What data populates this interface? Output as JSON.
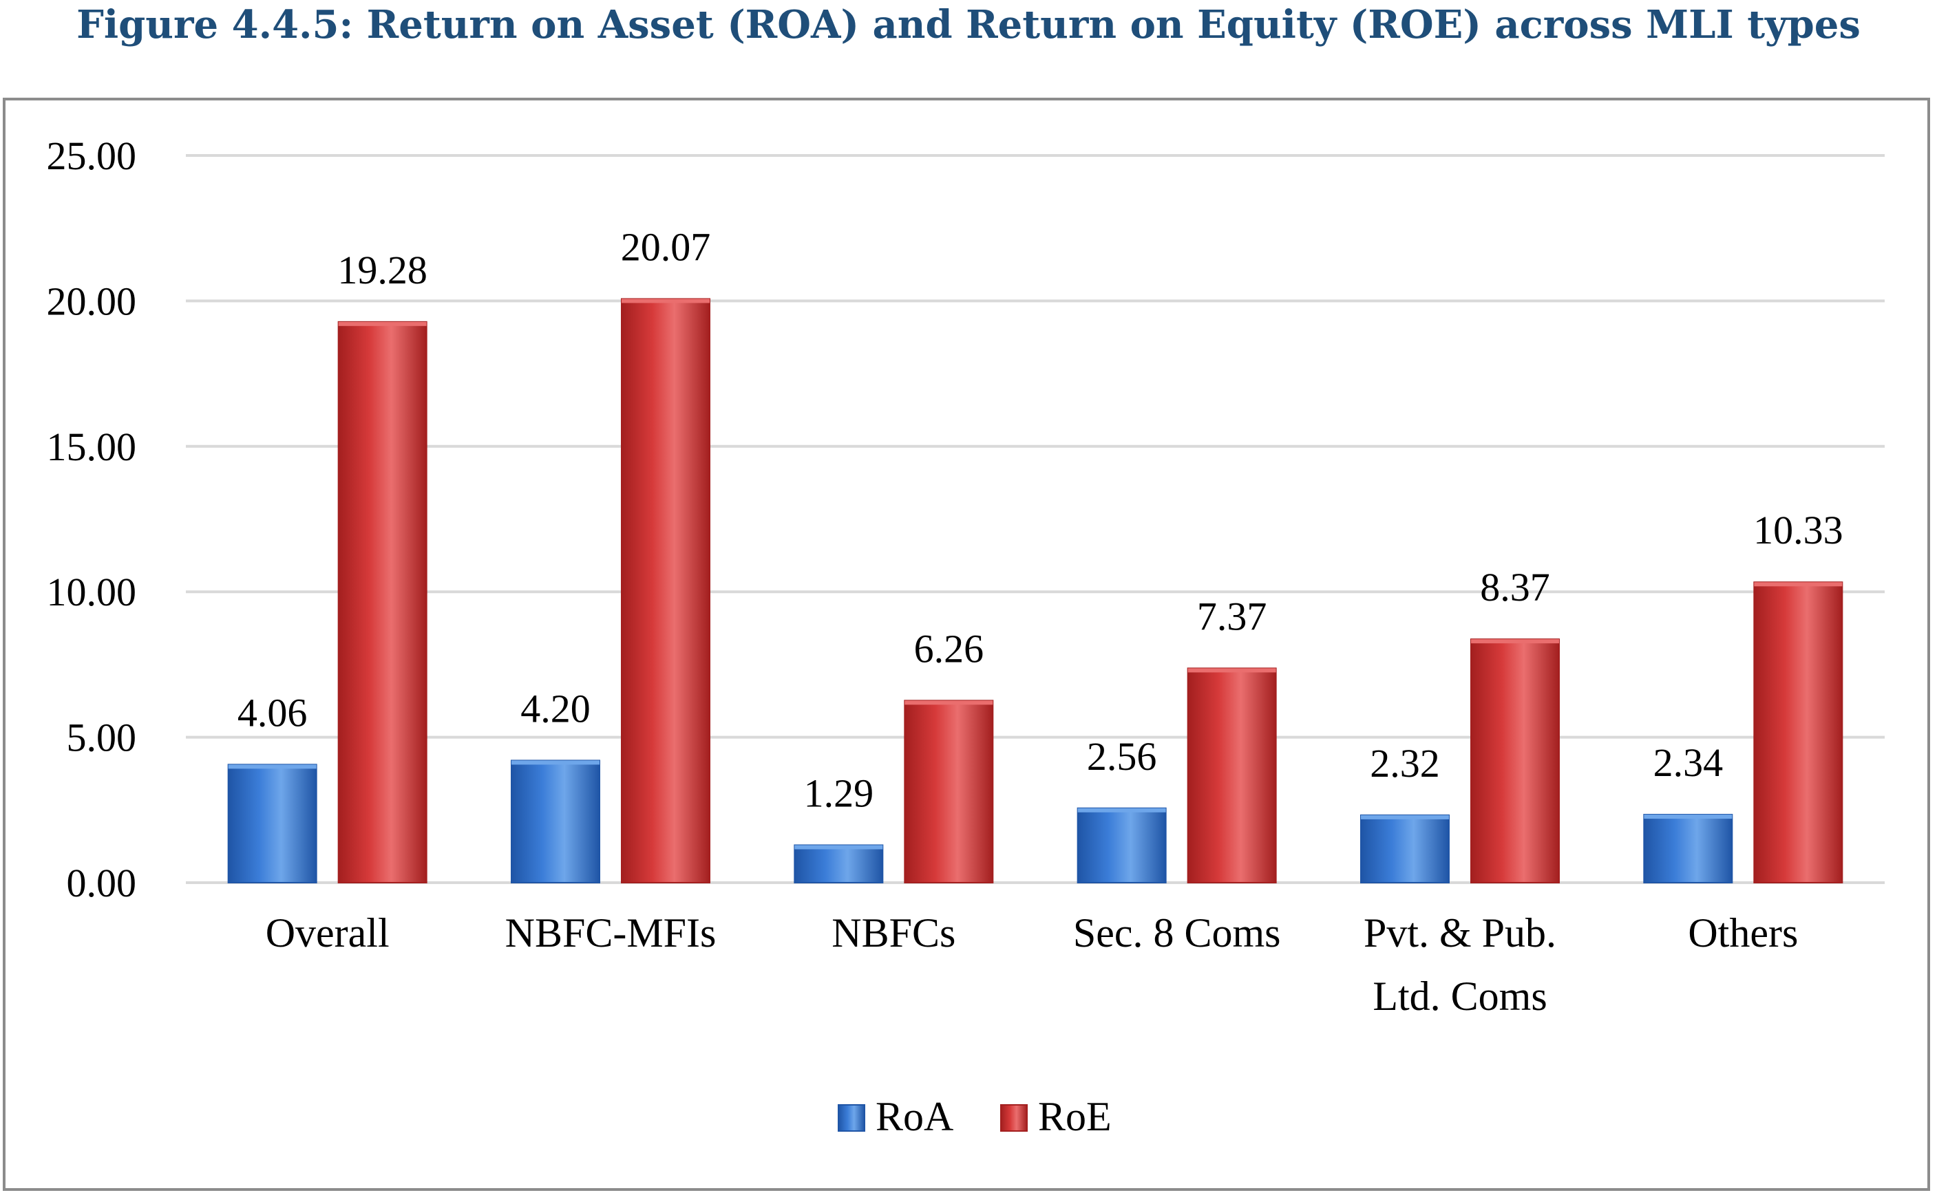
{
  "figure": {
    "title": "Figure 4.4.5: Return on Asset (ROA) and Return on Equity (ROE) across MLI types"
  },
  "chart_data": {
    "type": "bar",
    "categories": [
      [
        "Overall"
      ],
      [
        "NBFC-MFIs"
      ],
      [
        "NBFCs"
      ],
      [
        "Sec. 8 Coms"
      ],
      [
        "Pvt. & Pub.",
        "Ltd. Coms"
      ],
      [
        "Others"
      ]
    ],
    "series": [
      {
        "name": "RoA",
        "values": [
          4.06,
          4.2,
          1.29,
          2.56,
          2.32,
          2.34
        ],
        "labels": [
          "4.06",
          "4.20",
          "1.29",
          "2.56",
          "2.32",
          "2.34"
        ],
        "color": "#3b7dd8",
        "color_dark": "#1f55a6",
        "color_light": "#6ea6ea"
      },
      {
        "name": "RoE",
        "values": [
          19.28,
          20.07,
          6.26,
          7.37,
          8.37,
          10.33
        ],
        "labels": [
          "19.28",
          "20.07",
          "6.26",
          "7.37",
          "8.37",
          "10.33"
        ],
        "color": "#d63a3a",
        "color_dark": "#a31f1f",
        "color_light": "#ea6e6e"
      }
    ],
    "yticks": [
      "0.00",
      "5.00",
      "10.00",
      "15.00",
      "20.00",
      "25.00"
    ],
    "ylim": [
      0,
      25
    ],
    "grid": true,
    "legend_position": "bottom-center",
    "gridline_color": "#d9d9d9"
  }
}
